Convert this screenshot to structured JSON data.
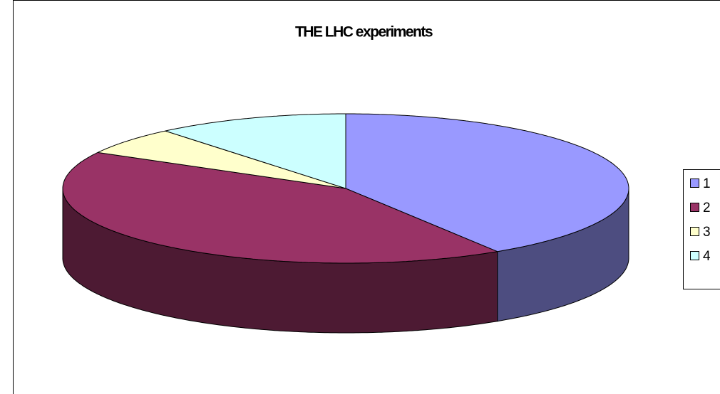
{
  "chart_data": {
    "type": "pie3d",
    "title": "THE LHC experiments",
    "categories": [
      "1",
      "2",
      "3",
      "4"
    ],
    "values": [
      41,
      42,
      6,
      11
    ],
    "colors": [
      "#9999ff",
      "#993366",
      "#ffffcc",
      "#ccffff"
    ],
    "legend": "right"
  }
}
